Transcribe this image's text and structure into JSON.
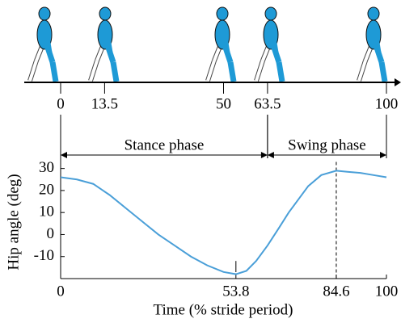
{
  "chart_data": {
    "type": "line",
    "xlabel": "Time (% stride period)",
    "ylabel": "Hip angle (deg)",
    "xlim": [
      0,
      100
    ],
    "ylim": [
      -20,
      35
    ],
    "xticks": [
      0,
      53.8,
      84.6,
      100
    ],
    "yticks": [
      -10,
      0,
      10,
      20,
      30
    ],
    "event_ticks": [
      0,
      13.5,
      50,
      63.5,
      100
    ],
    "phases": [
      {
        "label": "Stance phase",
        "range": [
          0,
          63.5
        ]
      },
      {
        "label": "Swing phase",
        "range": [
          63.5,
          100
        ]
      }
    ],
    "x": [
      0,
      5,
      10,
      15,
      20,
      25,
      30,
      35,
      40,
      45,
      50,
      53.8,
      57,
      60,
      63.5,
      67,
      70,
      73,
      76,
      80,
      84.6,
      88,
      92,
      96,
      100
    ],
    "values": [
      26,
      25,
      23,
      18,
      12,
      6,
      0,
      -5,
      -10,
      -14,
      -17,
      -18,
      -16.5,
      -12,
      -5,
      3,
      10,
      16,
      22,
      27,
      29,
      28.5,
      28,
      27,
      26
    ],
    "color": "#4a9fd8"
  }
}
